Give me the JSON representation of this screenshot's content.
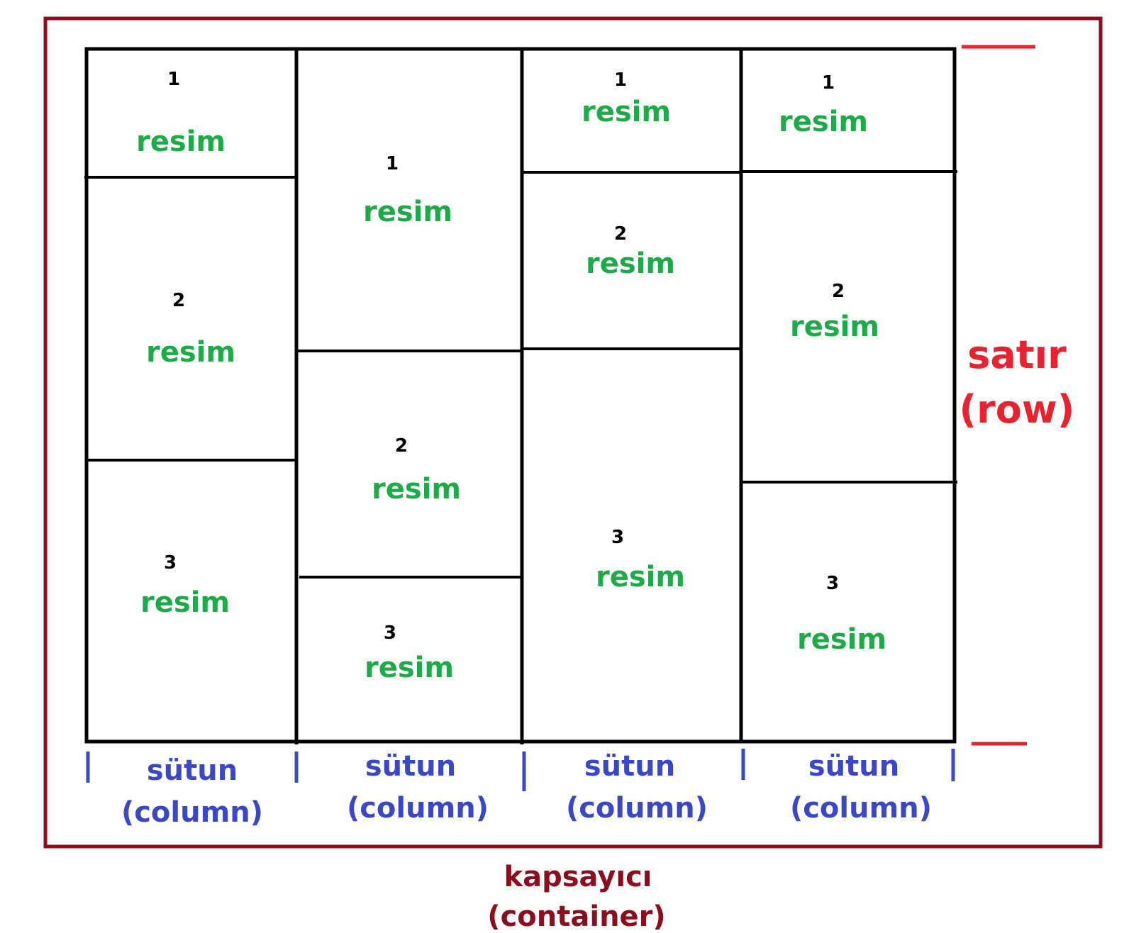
{
  "colors": {
    "container_border": "#8b0e1e",
    "grid_lines": "#000000",
    "image_label": "#1faa4a",
    "column_label": "#3b47c4",
    "row_label": "#e8222f",
    "container_label": "#8b0e1e"
  },
  "columns": [
    {
      "label_line1": "sütun",
      "label_line2": "(column)",
      "cells": [
        {
          "number": "1",
          "label": "resim"
        },
        {
          "number": "2",
          "label": "resim"
        },
        {
          "number": "3",
          "label": "resim"
        }
      ]
    },
    {
      "label_line1": "sütun",
      "label_line2": "(column)",
      "cells": [
        {
          "number": "1",
          "label": "resim"
        },
        {
          "number": "2",
          "label": "resim"
        },
        {
          "number": "3",
          "label": "resim"
        }
      ]
    },
    {
      "label_line1": "sütun",
      "label_line2": "(column)",
      "cells": [
        {
          "number": "1",
          "label": "resim"
        },
        {
          "number": "2",
          "label": "resim"
        },
        {
          "number": "3",
          "label": "resim"
        }
      ]
    },
    {
      "label_line1": "sütun",
      "label_line2": "(column)",
      "cells": [
        {
          "number": "1",
          "label": "resim"
        },
        {
          "number": "2",
          "label": "resim"
        },
        {
          "number": "3",
          "label": "resim"
        }
      ]
    }
  ],
  "row_label": {
    "line1": "satır",
    "line2": "(row)"
  },
  "container_label": {
    "line1": "kapsayıcı",
    "line2": "(container)"
  }
}
